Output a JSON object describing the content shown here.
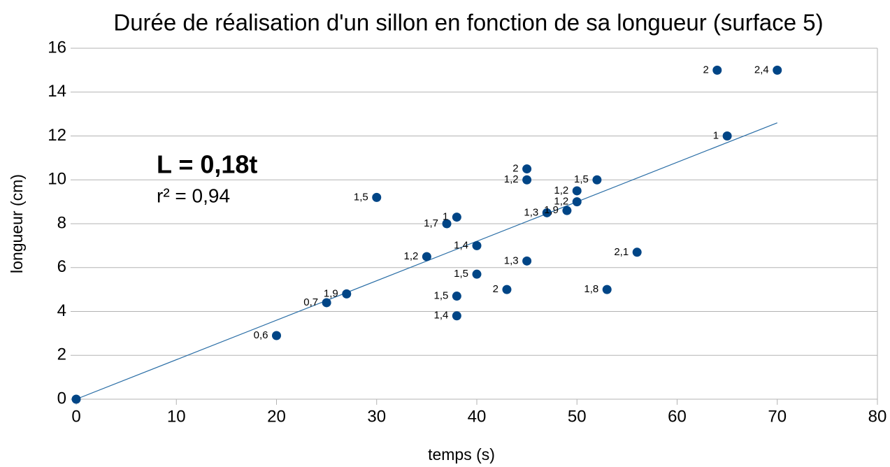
{
  "chart_data": {
    "type": "scatter",
    "title": "Durée de réalisation d'un sillon en fonction de sa longueur (surface 5)",
    "x_label": "temps (s)",
    "y_label": "longueur (cm)",
    "annotations": [
      "L = 0,18t",
      "r² = 0,94"
    ],
    "series": [
      {
        "name": "longueur",
        "color": "#004586",
        "x": [
          0,
          20,
          25,
          27,
          30,
          35,
          37,
          38,
          40,
          40,
          38,
          38,
          43,
          45,
          45,
          45,
          47,
          49,
          50,
          50,
          52,
          53,
          56,
          64,
          65,
          70
        ],
        "values": [
          0,
          2.9,
          4.4,
          4.8,
          9.2,
          6.5,
          8.0,
          8.3,
          7.0,
          5.7,
          4.7,
          3.8,
          5.0,
          6.3,
          10.5,
          10.0,
          8.5,
          8.6,
          9.0,
          9.5,
          10.0,
          5.0,
          6.7,
          15,
          12,
          15
        ],
        "point_labels": [
          null,
          "0,6",
          "0,7",
          "1,9",
          "1,5",
          "1,2",
          "1,7",
          "1",
          "1,4",
          "1,5",
          "1,5",
          "1,4",
          "2",
          "1,3",
          "2",
          "1,2",
          "1,3",
          "1,9",
          "1,2",
          "1,2",
          "1,5",
          "1,8",
          "2,1",
          "2",
          "1",
          "2,4"
        ]
      }
    ],
    "trendline": {
      "color": "#2a6ea6",
      "x": [
        0,
        70
      ],
      "values": [
        0,
        12.6
      ]
    },
    "xlim": [
      0,
      80
    ],
    "xticks": [
      0,
      10,
      20,
      30,
      40,
      50,
      60,
      70,
      80
    ],
    "ylim": [
      0,
      16
    ],
    "yticks": [
      0,
      2,
      4,
      6,
      8,
      10,
      12,
      14,
      16
    ],
    "grid": true
  }
}
